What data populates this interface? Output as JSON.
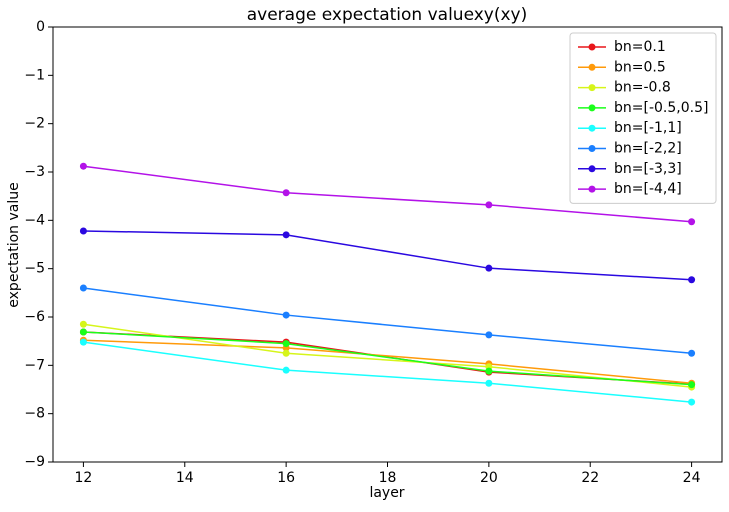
{
  "chart_data": {
    "type": "line",
    "title": "average expectation valuexy(xy)",
    "x_label": "layer",
    "y_label": "expectation value",
    "x": [
      12,
      16,
      20,
      24
    ],
    "series": [
      {
        "name": "bn=0.1",
        "color": "#e8161a",
        "values": [
          -6.31,
          -6.52,
          -7.14,
          -7.39
        ]
      },
      {
        "name": "bn=0.5",
        "color": "#ff9a0a",
        "values": [
          -6.48,
          -6.64,
          -6.97,
          -7.37
        ]
      },
      {
        "name": "bn=-0.8",
        "color": "#d6f51a",
        "values": [
          -6.15,
          -6.75,
          -7.03,
          -7.45
        ]
      },
      {
        "name": "bn=[-0.5,0.5]",
        "color": "#1aff1a",
        "values": [
          -6.31,
          -6.55,
          -7.12,
          -7.4
        ]
      },
      {
        "name": "bn=[-1,1]",
        "color": "#1affff",
        "values": [
          -6.52,
          -7.1,
          -7.37,
          -7.76
        ]
      },
      {
        "name": "bn=[-2,2]",
        "color": "#1a7fff",
        "values": [
          -5.4,
          -5.96,
          -6.37,
          -6.75
        ]
      },
      {
        "name": "bn=[-3,3]",
        "color": "#2a08e0",
        "values": [
          -4.22,
          -4.3,
          -4.99,
          -5.23
        ]
      },
      {
        "name": "bn=[-4,4]",
        "color": "#b312e8",
        "values": [
          -2.88,
          -3.43,
          -3.68,
          -4.03
        ]
      }
    ],
    "xlim": [
      11.4,
      24.6
    ],
    "xticks": [
      12,
      14,
      16,
      18,
      20,
      22,
      24
    ],
    "ylim": [
      -9,
      0
    ],
    "yticks": [
      {
        "value": -9,
        "label": "−9"
      },
      {
        "value": -8,
        "label": "−8"
      },
      {
        "value": -7,
        "label": "−7"
      },
      {
        "value": -6,
        "label": "−6"
      },
      {
        "value": -5,
        "label": "−5"
      },
      {
        "value": -4,
        "label": "−4"
      },
      {
        "value": -3,
        "label": "−3"
      },
      {
        "value": -2,
        "label": "−2"
      },
      {
        "value": -1,
        "label": "−1"
      },
      0
    ],
    "legend": "upper right",
    "grid": false
  }
}
